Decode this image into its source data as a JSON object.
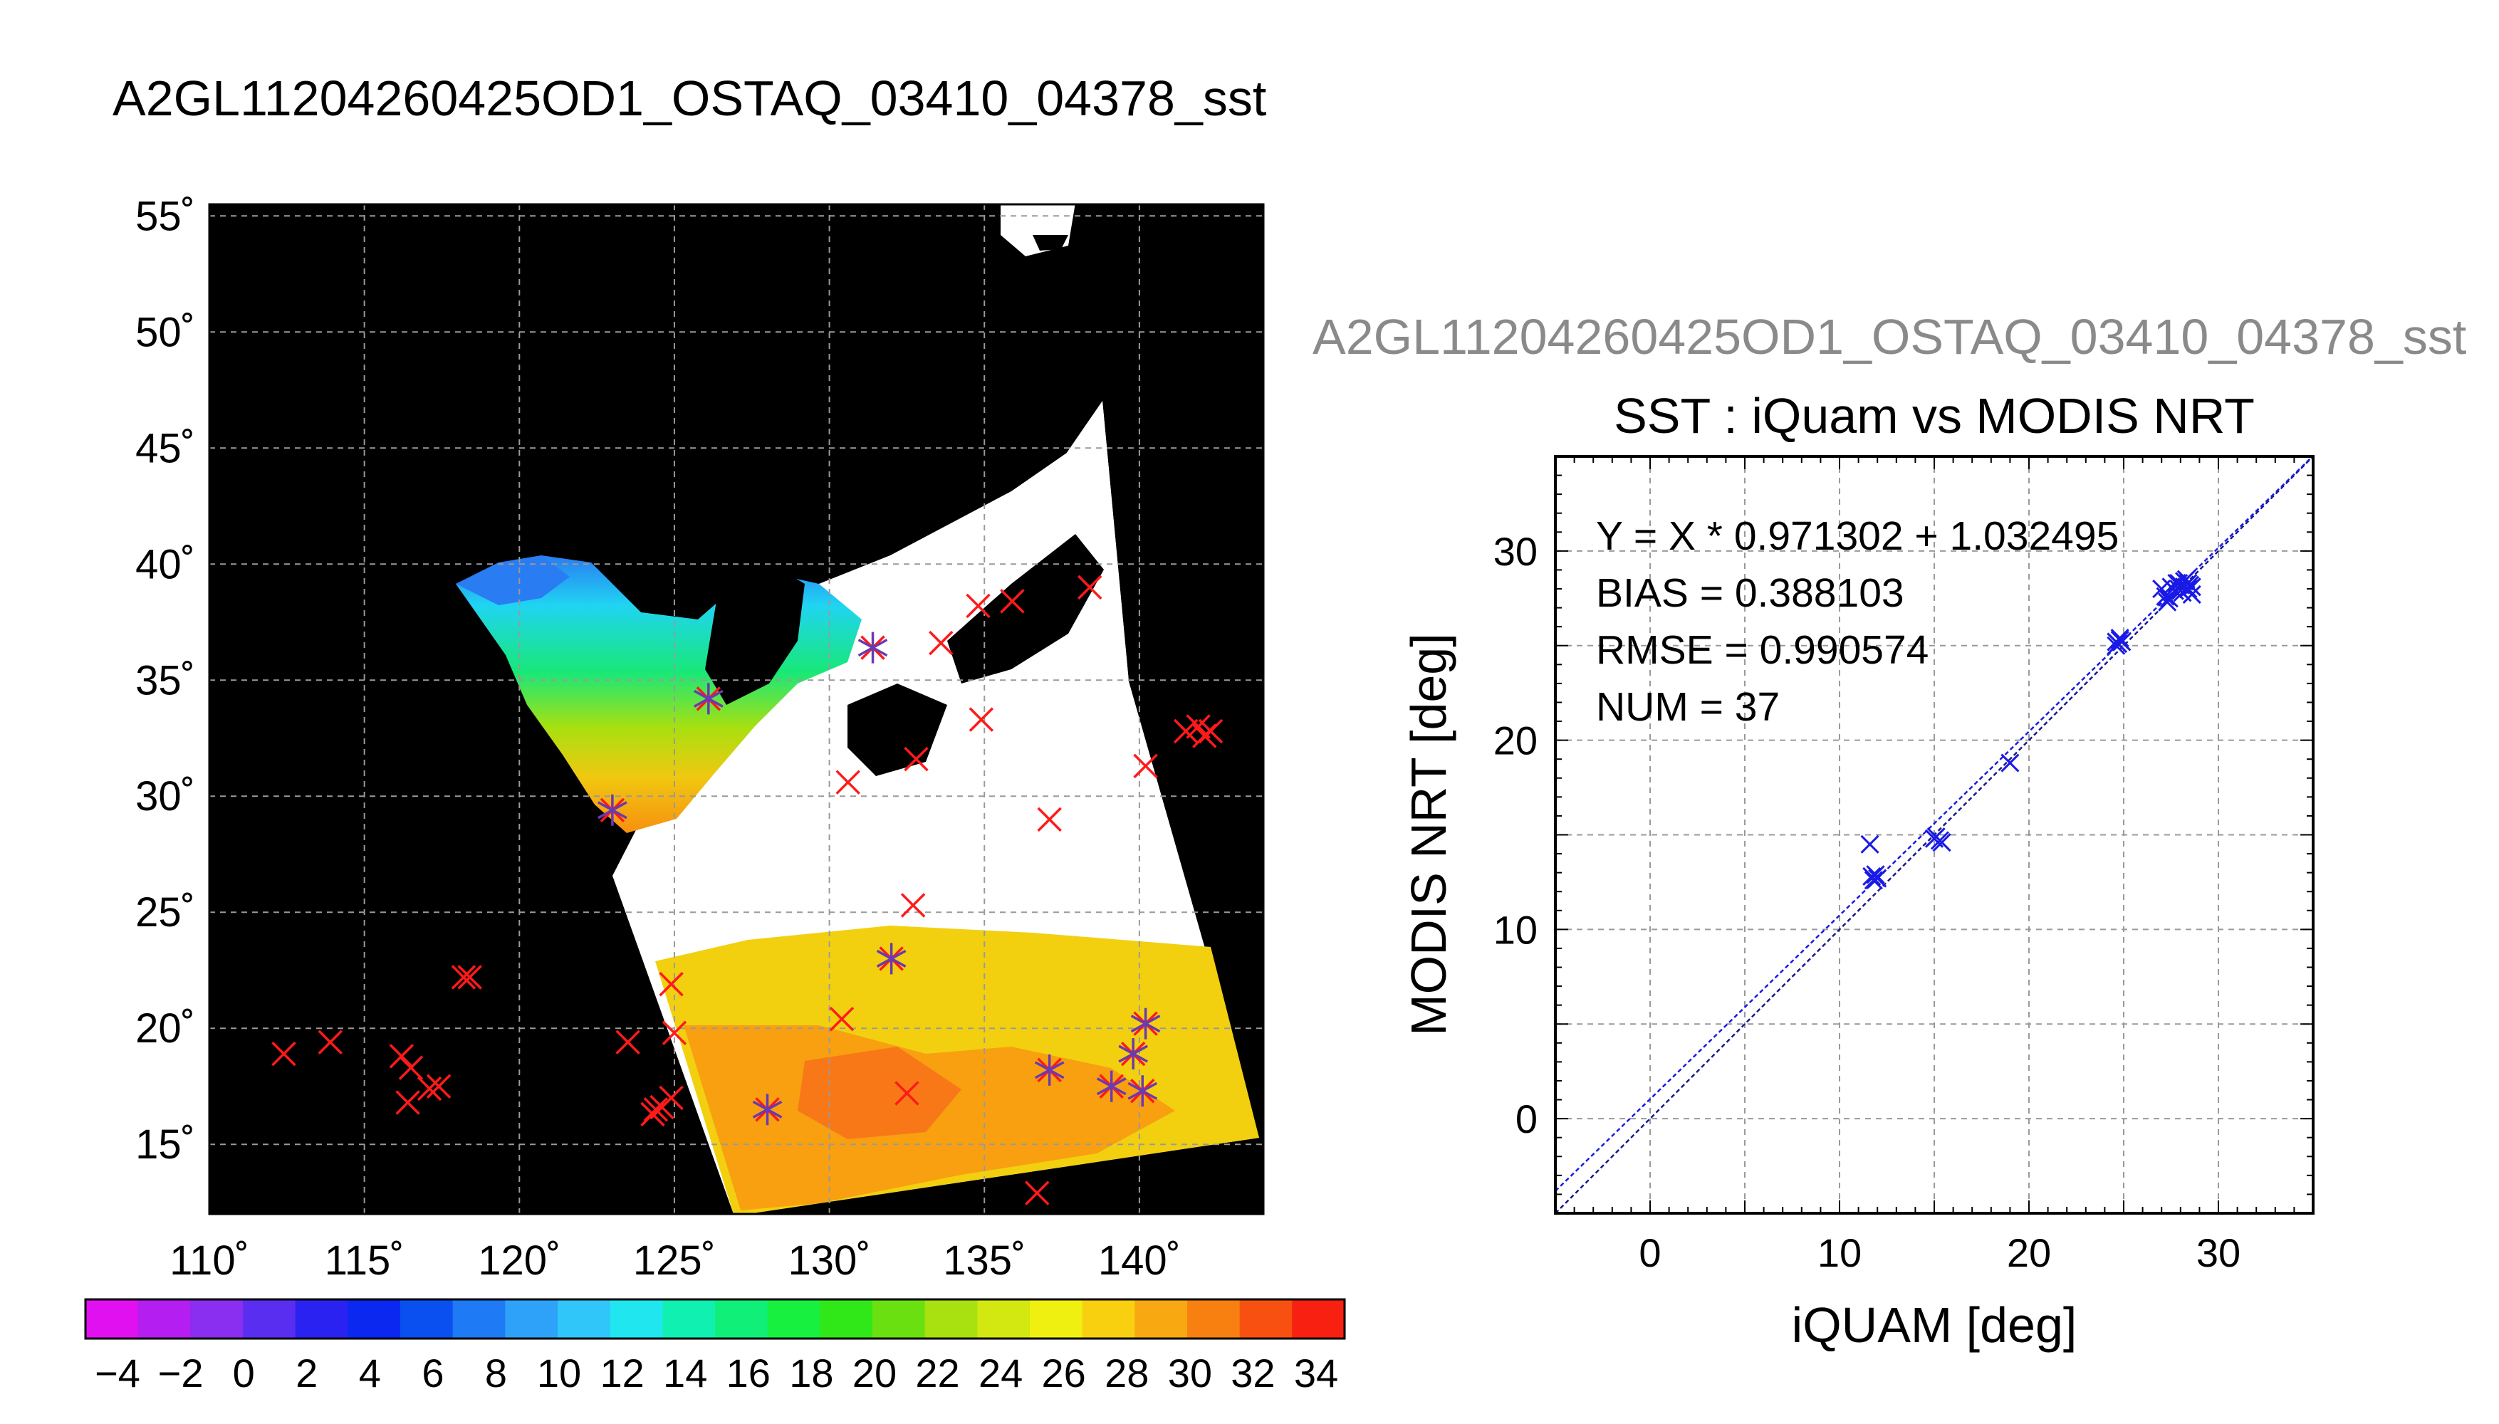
{
  "main_title": "A2GL11204260425OD1_OSTAQ_03410_04378_sst",
  "map": {
    "lon_range": [
      110,
      144
    ],
    "lat_range": [
      12,
      55.5
    ],
    "lon_ticks": [
      110,
      115,
      120,
      125,
      130,
      135,
      140
    ],
    "lat_ticks": [
      15,
      20,
      25,
      30,
      35,
      40,
      45,
      50,
      55
    ],
    "lon_tick_labels": [
      "110˚",
      "115˚",
      "120˚",
      "125˚",
      "130˚",
      "135˚",
      "140˚"
    ],
    "lat_tick_labels": [
      "15˚",
      "20˚",
      "25˚",
      "30˚",
      "35˚",
      "40˚",
      "45˚",
      "50˚",
      "55˚"
    ],
    "background_color": "#000000",
    "red_marker_color": "#ff1a1a",
    "blue_marker_color": "#6a3ab0",
    "red_markers": [
      [
        112.4,
        18.9
      ],
      [
        113.9,
        19.4
      ],
      [
        116.2,
        18.8
      ],
      [
        116.5,
        18.3
      ],
      [
        116.4,
        16.8
      ],
      [
        117.1,
        17.4
      ],
      [
        117.4,
        17.5
      ],
      [
        118.2,
        22.2
      ],
      [
        118.4,
        22.2
      ],
      [
        123.5,
        19.4
      ],
      [
        124.3,
        16.3
      ],
      [
        124.4,
        16.5
      ],
      [
        124.6,
        16.6
      ],
      [
        124.9,
        17.0
      ],
      [
        125.0,
        19.8
      ],
      [
        124.9,
        21.9
      ],
      [
        128.0,
        16.5
      ],
      [
        130.4,
        20.4
      ],
      [
        130.6,
        30.6
      ],
      [
        132.0,
        23.0
      ],
      [
        132.7,
        25.3
      ],
      [
        132.5,
        17.2
      ],
      [
        132.8,
        31.6
      ],
      [
        133.6,
        36.6
      ],
      [
        134.8,
        38.2
      ],
      [
        135.9,
        38.4
      ],
      [
        134.9,
        33.3
      ],
      [
        136.7,
        12.9
      ],
      [
        137.1,
        18.2
      ],
      [
        137.1,
        29.0
      ],
      [
        138.4,
        39.0
      ],
      [
        139.1,
        17.5
      ],
      [
        140.1,
        17.3
      ],
      [
        140.2,
        31.3
      ],
      [
        140.2,
        20.2
      ],
      [
        139.8,
        18.9
      ],
      [
        141.5,
        32.8
      ],
      [
        141.9,
        33.0
      ],
      [
        142.1,
        32.6
      ],
      [
        142.3,
        32.8
      ],
      [
        131.4,
        36.4
      ],
      [
        126.1,
        34.2
      ],
      [
        123.0,
        29.4
      ]
    ],
    "blue_asterisks": [
      [
        126.1,
        34.2
      ],
      [
        131.4,
        36.4
      ],
      [
        123.0,
        29.4
      ],
      [
        132.0,
        23.0
      ],
      [
        128.0,
        16.5
      ],
      [
        137.1,
        18.2
      ],
      [
        139.1,
        17.5
      ],
      [
        140.1,
        17.3
      ],
      [
        139.8,
        18.9
      ],
      [
        140.2,
        20.2
      ]
    ]
  },
  "colorbar": {
    "tick_labels": [
      "−4",
      "−2",
      "0",
      "2",
      "4",
      "6",
      "8",
      "10",
      "12",
      "14",
      "16",
      "18",
      "20",
      "22",
      "24",
      "26",
      "28",
      "30",
      "32",
      "34"
    ],
    "colors": [
      "#e010f0",
      "#b41ef0",
      "#8a2ef0",
      "#5a2ef0",
      "#2a22f0",
      "#0a28f0",
      "#0a50f0",
      "#1e7af5",
      "#2ea2f8",
      "#30c6fa",
      "#20e6f0",
      "#10f0b0",
      "#10f078",
      "#18f040",
      "#30e818",
      "#6ae010",
      "#a8e010",
      "#d2e810",
      "#f0f010",
      "#f8d010",
      "#f8a810",
      "#f88010",
      "#f85010",
      "#f82010"
    ]
  },
  "scatter": {
    "subtitle": "A2GL11204260425OD1_OSTAQ_03410_04378_sst",
    "title": "SST : iQuam vs MODIS NRT",
    "xlabel": "iQUAM [deg]",
    "ylabel": "MODIS NRT [deg]",
    "stats": [
      "Y = X * 0.971302 + 1.032495",
      "BIAS = 0.388103",
      "RMSE = 0.990574",
      "NUM = 37"
    ],
    "marker_color": "#1a1ae6",
    "line_color": "#1a1ae6"
  },
  "chart_data": {
    "type": "scatter",
    "title": "SST : iQuam vs MODIS NRT",
    "xlabel": "iQUAM [deg]",
    "ylabel": "MODIS NRT [deg]",
    "xlim": [
      -5,
      35
    ],
    "ylim": [
      -5,
      35
    ],
    "xticks": [
      0,
      10,
      20,
      30
    ],
    "yticks": [
      0,
      10,
      20,
      30
    ],
    "grid": true,
    "fit": {
      "slope": 0.971302,
      "intercept": 1.032495
    },
    "points": [
      [
        11.6,
        14.5
      ],
      [
        11.8,
        12.6
      ],
      [
        11.9,
        12.9
      ],
      [
        11.7,
        12.8
      ],
      [
        12.0,
        12.7
      ],
      [
        15.0,
        14.8
      ],
      [
        15.3,
        14.7
      ],
      [
        15.1,
        14.9
      ],
      [
        15.4,
        14.6
      ],
      [
        19.0,
        18.8
      ],
      [
        24.6,
        25.2
      ],
      [
        24.8,
        25.3
      ],
      [
        24.7,
        25.1
      ],
      [
        24.9,
        25.2
      ],
      [
        24.8,
        25.4
      ],
      [
        24.6,
        25.0
      ],
      [
        27.0,
        28.0
      ],
      [
        27.2,
        27.6
      ],
      [
        27.4,
        27.5
      ],
      [
        27.5,
        28.1
      ],
      [
        27.7,
        27.9
      ],
      [
        27.9,
        28.3
      ],
      [
        28.0,
        28.2
      ],
      [
        28.1,
        27.8
      ],
      [
        28.2,
        28.4
      ],
      [
        28.3,
        28.5
      ],
      [
        28.4,
        28.0
      ],
      [
        28.5,
        28.2
      ],
      [
        28.6,
        27.7
      ],
      [
        27.6,
        28.0
      ],
      [
        27.8,
        28.3
      ],
      [
        28.0,
        27.9
      ],
      [
        27.3,
        27.3
      ],
      [
        28.2,
        28.1
      ],
      [
        28.4,
        28.3
      ],
      [
        27.9,
        28.0
      ],
      [
        28.6,
        28.1
      ]
    ]
  }
}
